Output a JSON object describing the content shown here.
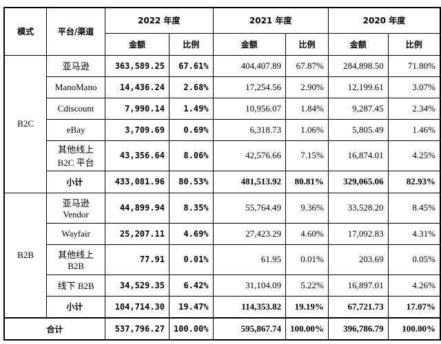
{
  "table": {
    "header": {
      "mode": "模式",
      "platform": "平台/渠道",
      "years": [
        "2022 年度",
        "2021 年度",
        "2020 年度"
      ],
      "sub": [
        "金额",
        "比例"
      ]
    },
    "groups": [
      {
        "mode": "B2C",
        "rows": [
          [
            "亚马逊",
            "363,589.25",
            "67.61%",
            "404,407.89",
            "67.87%",
            "284,898.50",
            "71.80%"
          ],
          [
            "ManoMano",
            "14,436.24",
            "2.68%",
            "17,254.56",
            "2.90%",
            "12,199.61",
            "3.07%"
          ],
          [
            "Cdiscount",
            "7,990.14",
            "1.49%",
            "10,956.07",
            "1.84%",
            "9,287.45",
            "2.34%"
          ],
          [
            "eBay",
            "3,709.69",
            "0.69%",
            "6,318.73",
            "1.06%",
            "5,805.49",
            "1.46%"
          ],
          [
            "其他线上\nB2C 平台",
            "43,356.64",
            "8.06%",
            "42,576.66",
            "7.15%",
            "16,874.01",
            "4.25%"
          ]
        ],
        "subtotal": [
          "小计",
          "433,081.96",
          "80.53%",
          "481,513.92",
          "80.81%",
          "329,065.06",
          "82.93%"
        ]
      },
      {
        "mode": "B2B",
        "rows": [
          [
            "亚马逊\nVendor",
            "44,899.94",
            "8.35%",
            "55,764.49",
            "9.36%",
            "33,528.20",
            "8.45%"
          ],
          [
            "Wayfair",
            "25,207.11",
            "4.69%",
            "27,423.29",
            "4.60%",
            "17,092.83",
            "4.31%"
          ],
          [
            "其他线上\nB2B",
            "77.91",
            "0.01%",
            "61.95",
            "0.01%",
            "203.69",
            "0.05%"
          ],
          [
            "线下 B2B",
            "34,529.35",
            "6.42%",
            "31,104.09",
            "5.22%",
            "16,897.01",
            "4.26%"
          ]
        ],
        "subtotal": [
          "小计",
          "104,714.30",
          "19.47%",
          "114,353.82",
          "19.19%",
          "67,721.73",
          "17.07%"
        ]
      }
    ],
    "total": [
      "合计",
      "537,796.27",
      "100.00%",
      "595,867.74",
      "100.00%",
      "396,786.79",
      "100.00%"
    ]
  }
}
